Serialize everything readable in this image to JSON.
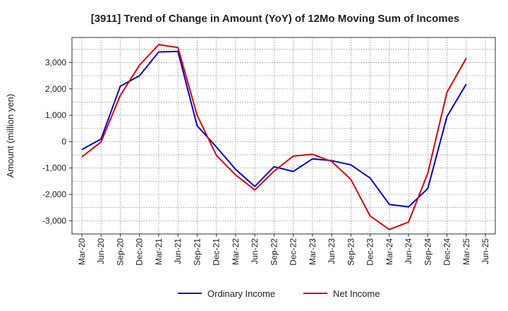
{
  "chart_data": {
    "type": "line",
    "title": "[3911]  Trend of Change in Amount (YoY) of 12Mo Moving Sum of Incomes",
    "xlabel": "",
    "ylabel": "Amount (million yen)",
    "x": [
      "Mar-20",
      "Jun-20",
      "Sep-20",
      "Dec-20",
      "Mar-21",
      "Jun-21",
      "Sep-21",
      "Dec-21",
      "Mar-22",
      "Jun-22",
      "Sep-22",
      "Dec-22",
      "Mar-23",
      "Jun-23",
      "Sep-23",
      "Dec-23",
      "Mar-24",
      "Jun-24",
      "Sep-24",
      "Dec-24",
      "Mar-25",
      "Jun-25"
    ],
    "ylim": [
      -3500,
      3950
    ],
    "yticks": [
      -3000,
      -2000,
      -1000,
      0,
      1000,
      2000,
      3000
    ],
    "ytick_labels": [
      "-3,000",
      "-2,000",
      "-1,000",
      "0",
      "1,000",
      "2,000",
      "3,000"
    ],
    "grid": true,
    "legend_position": "bottom",
    "series": [
      {
        "name": "Ordinary Income",
        "color": "#0000cc",
        "values": [
          -300,
          100,
          2100,
          2500,
          3400,
          3420,
          600,
          -200,
          -1050,
          -1700,
          -950,
          -1130,
          -650,
          -720,
          -880,
          -1380,
          -2380,
          -2470,
          -1780,
          950,
          2180,
          null
        ]
      },
      {
        "name": "Net Income",
        "color": "#dd0000",
        "values": [
          -580,
          -10,
          1750,
          2900,
          3680,
          3570,
          1000,
          -520,
          -1260,
          -1830,
          -1120,
          -550,
          -480,
          -750,
          -1430,
          -2820,
          -3330,
          -3050,
          -1200,
          1870,
          3160,
          null
        ]
      }
    ]
  }
}
